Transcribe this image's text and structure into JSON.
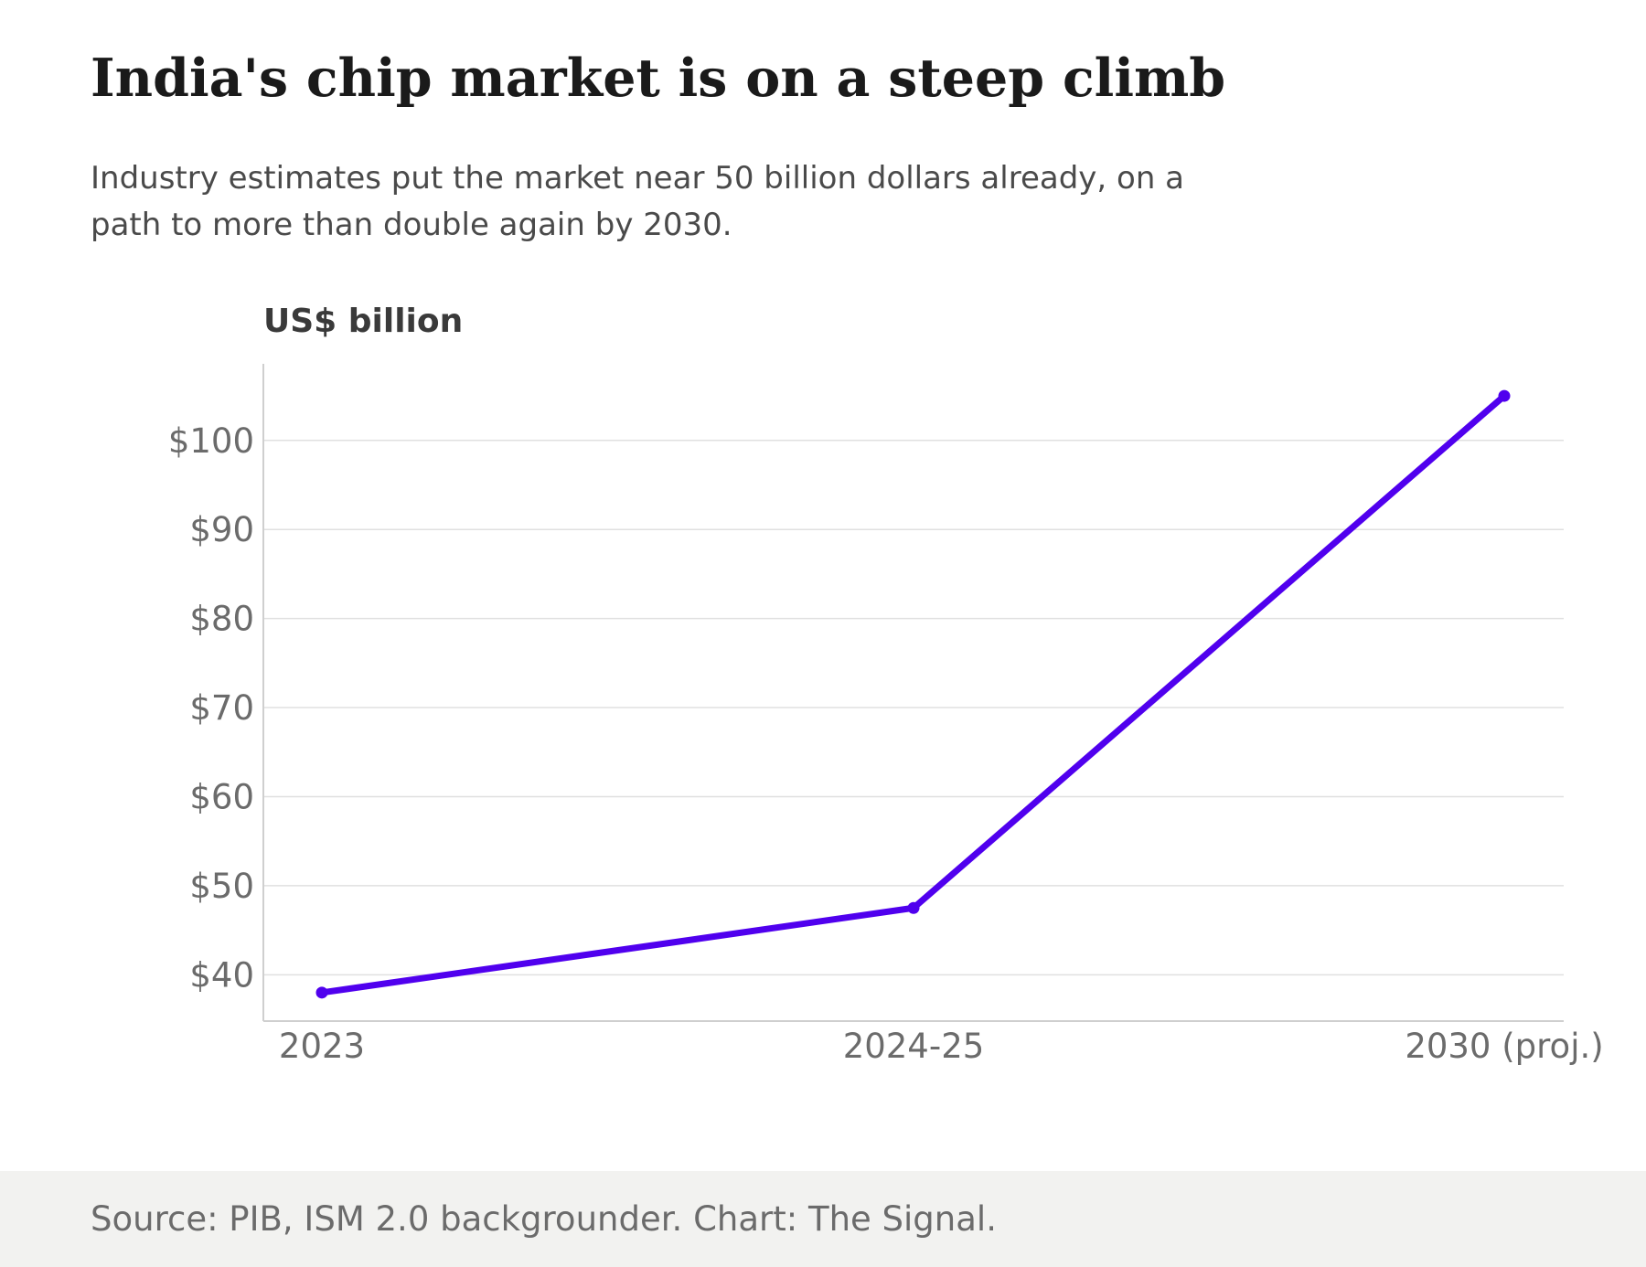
{
  "header": {
    "title": "India's chip market is on a steep climb",
    "subtitle": "Industry estimates put the market near 50 billion dollars already, on a path to more than double again by 2030."
  },
  "footer": {
    "source": "Source: PIB, ISM 2.0 backgrounder. Chart: The Signal."
  },
  "colors": {
    "line": "#5000ee",
    "grid": "#e0e0e0",
    "axis": "#cfcfcf",
    "tick_text": "#6b6b6b",
    "unit_label": "#3a3a3a",
    "footer_bg": "#f2f2f0"
  },
  "chart_data": {
    "type": "line",
    "title": "India's chip market is on a steep climb",
    "subtitle": "Industry estimates put the market near 50 billion dollars already, on a path to more than double again by 2030.",
    "ylabel": "US$ billion",
    "xlabel": "",
    "categories": [
      "2023",
      "2024-25",
      "2030 (proj.)"
    ],
    "series": [
      {
        "values": [
          38,
          47.5,
          105
        ]
      }
    ],
    "y_ticks": [
      40,
      50,
      60,
      70,
      80,
      90,
      100
    ],
    "y_tick_labels": [
      "$40",
      "$50",
      "$60",
      "$70",
      "$80",
      "$90",
      "$100"
    ],
    "ylim": [
      34.8,
      108.6
    ],
    "grid": true,
    "legend": "none",
    "markers": true
  }
}
